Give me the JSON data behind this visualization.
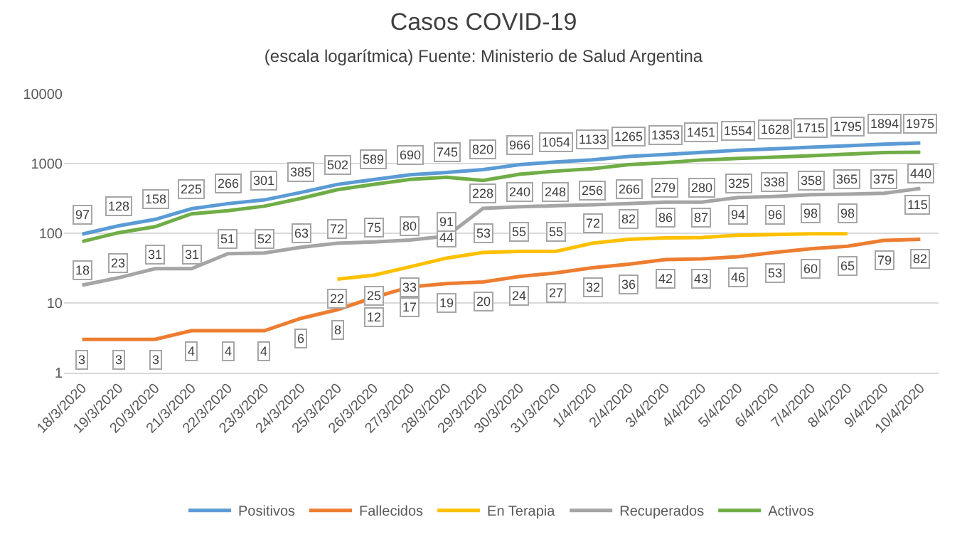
{
  "chart_data": {
    "type": "line",
    "title": "Casos COVID-19",
    "subtitle": "(escala logarítmica) Fuente: Ministerio de Salud Argentina",
    "categories": [
      "18/3/2020",
      "19/3/2020",
      "20/3/2020",
      "21/3/2020",
      "22/3/2020",
      "23/3/2020",
      "24/3/2020",
      "25/3/2020",
      "26/3/2020",
      "27/3/2020",
      "28/3/2020",
      "29/3/2020",
      "30/3/2020",
      "31/3/2020",
      "1/4/2020",
      "2/4/2020",
      "3/4/2020",
      "4/4/2020",
      "5/4/2020",
      "6/4/2020",
      "7/4/2020",
      "8/4/2020",
      "9/4/2020",
      "10/4/2020"
    ],
    "series": [
      {
        "name": "Positivos",
        "color": "#5b9bd5",
        "values": [
          97,
          128,
          158,
          225,
          266,
          301,
          385,
          502,
          589,
          690,
          745,
          820,
          966,
          1054,
          1133,
          1265,
          1353,
          1451,
          1554,
          1628,
          1715,
          1795,
          1894,
          1975
        ],
        "value_labels": [
          "97",
          "128",
          "158",
          "225",
          "266",
          "301",
          "385",
          "502",
          "589",
          "690",
          "745",
          "820",
          "966",
          "1054",
          "1133",
          "1265",
          "1353",
          "1451",
          "1554",
          "1628",
          "1715",
          "1795",
          "1894",
          "1975"
        ]
      },
      {
        "name": "Fallecidos",
        "color": "#ed7d31",
        "values": [
          3,
          3,
          3,
          4,
          4,
          4,
          6,
          8,
          12,
          17,
          19,
          20,
          24,
          27,
          32,
          36,
          42,
          43,
          46,
          53,
          60,
          65,
          79,
          82
        ],
        "value_labels": [
          "3",
          "3",
          "3",
          "4",
          "4",
          "4",
          "6",
          "8",
          "12",
          "17",
          "19",
          "20",
          "24",
          "27",
          "32",
          "36",
          "42",
          "43",
          "46",
          "53",
          "60",
          "65",
          "79",
          "82"
        ]
      },
      {
        "name": "En Terapia",
        "color": "#ffc000",
        "values": [
          null,
          null,
          null,
          null,
          null,
          null,
          null,
          22,
          25,
          33,
          44,
          53,
          55,
          55,
          72,
          82,
          86,
          87,
          94,
          96,
          98,
          98,
          null,
          null
        ],
        "value_labels": [
          null,
          null,
          null,
          null,
          null,
          null,
          null,
          "22",
          "25",
          "33",
          "44",
          "53",
          "55",
          "55",
          "72",
          "82",
          "86",
          "87",
          "94",
          "96",
          "98",
          "98",
          null,
          null
        ]
      },
      {
        "name": "Recuperados",
        "color": "#a5a5a5",
        "values": [
          18,
          23,
          31,
          31,
          51,
          52,
          63,
          72,
          75,
          80,
          91,
          228,
          240,
          248,
          256,
          266,
          279,
          280,
          325,
          338,
          358,
          365,
          375,
          440
        ],
        "value_labels": [
          "18",
          "23",
          "31",
          "31",
          "51",
          "52",
          "63",
          "72",
          "75",
          "80",
          "91",
          "228",
          "240",
          "248",
          "256",
          "266",
          "279",
          "280",
          "325",
          "338",
          "358",
          "365",
          "375",
          "440"
        ]
      },
      {
        "name": "Activos",
        "color": "#70ad47",
        "values": [
          76,
          102,
          124,
          190,
          211,
          245,
          316,
          422,
          502,
          593,
          635,
          572,
          702,
          779,
          845,
          963,
          1032,
          1128,
          1183,
          1237,
          1297,
          1365,
          1440,
          1453
        ]
      }
    ],
    "annotations": [
      "115"
    ],
    "log": "y",
    "ylim": [
      1,
      10000
    ],
    "yticks": [
      1,
      10,
      100,
      1000,
      10000
    ],
    "grid": "y",
    "legend": "bottom",
    "marker": "none",
    "line_style": "solid"
  }
}
